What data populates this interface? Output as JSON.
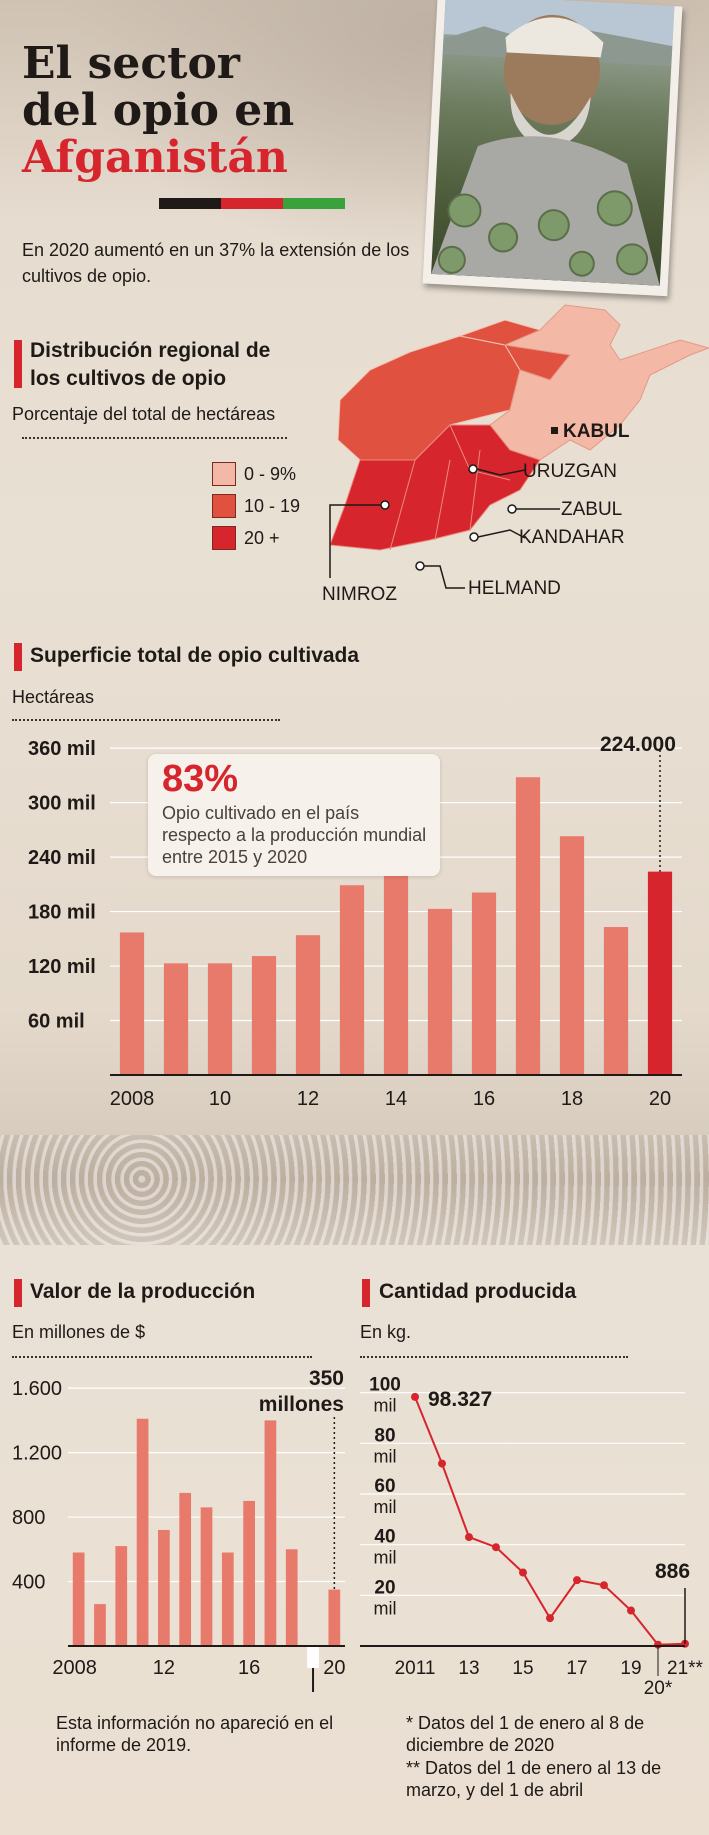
{
  "header": {
    "title_line1": "El sector",
    "title_line2": "del opio en",
    "title_line3": "Afganistán",
    "flag_colors": [
      "#1f1a17",
      "#d7252e",
      "#3aa23a"
    ],
    "intro": "En 2020 aumentó en un 37% la extensión de los cultivos de opio.",
    "photo_icon": "farmer-photo"
  },
  "map_section": {
    "title": "Distribución regional de los cultivos de opio",
    "subtitle": "Porcentaje del total de hectáreas",
    "legend": [
      {
        "label": "0 - 9%",
        "color": "#f3b8a6"
      },
      {
        "label": "10 - 19",
        "color": "#e0523f"
      },
      {
        "label": "20 +",
        "color": "#d7252e"
      }
    ],
    "labels": {
      "kabul": "KABUL",
      "uruzgan": "URUZGAN",
      "zabul": "ZABUL",
      "kandahar": "KANDAHAR",
      "helmand": "HELMAND",
      "nimroz": "NIMROZ"
    }
  },
  "area_section": {
    "title": "Superficie total de opio cultivada",
    "subtitle": "Hectáreas",
    "highlight_value": "224.000",
    "callout_big": "83%",
    "callout_text": "Opio cultivado en el país respecto a la producción mundial entre 2015 y 2020"
  },
  "value_section": {
    "title": "Valor de la producción",
    "subtitle": "En millones de $",
    "highlight_line1": "350",
    "highlight_line2": "millones",
    "note": "Esta información no apareció en el informe de 2019."
  },
  "qty_section": {
    "title": "Cantidad producida",
    "subtitle": "En kg.",
    "first_label": "98.327",
    "last_label": "886",
    "note1": "* Datos del 1 de enero al 8 de diciembre de 2020",
    "note2": "** Datos del 1 de enero al 13 de marzo, y del 1 de abril"
  },
  "chart_data": [
    {
      "type": "bar",
      "title": "Superficie total de opio cultivada",
      "ylabel": "Hectáreas",
      "categories": [
        "2008",
        "2009",
        "2010",
        "2011",
        "2012",
        "2013",
        "2014",
        "2015",
        "2016",
        "2017",
        "2018",
        "2019",
        "2020"
      ],
      "values": [
        157000,
        123000,
        123000,
        131000,
        154000,
        209000,
        224000,
        183000,
        201000,
        328000,
        263000,
        163000,
        224000
      ],
      "x_tick_labels": [
        "2008",
        "",
        "10",
        "",
        "12",
        "",
        "14",
        "",
        "16",
        "",
        "18",
        "",
        "20"
      ],
      "y_ticks": [
        60,
        120,
        180,
        240,
        300,
        360
      ],
      "y_tick_labels": [
        "60 mil",
        "120 mil",
        "180 mil",
        "240 mil",
        "300 mil",
        "360 mil"
      ],
      "ylim": [
        0,
        380000
      ],
      "colors": {
        "bar": "#e87a6c",
        "highlight": "#d7252e"
      },
      "grid": true
    },
    {
      "type": "bar",
      "title": "Valor de la producción",
      "ylabel": "En millones de $",
      "categories": [
        "2008",
        "2009",
        "2010",
        "2011",
        "2012",
        "2013",
        "2014",
        "2015",
        "2016",
        "2017",
        "2018",
        "2019",
        "2020"
      ],
      "values": [
        580,
        260,
        620,
        1410,
        720,
        950,
        860,
        580,
        900,
        1400,
        600,
        null,
        350
      ],
      "x_tick_labels": [
        "2008",
        "",
        "",
        "",
        "12",
        "",
        "",
        "",
        "16",
        "",
        "",
        "",
        "20"
      ],
      "y_ticks": [
        400,
        800,
        1200,
        1600
      ],
      "y_tick_labels": [
        "400",
        "800",
        "1.200",
        "1.600"
      ],
      "ylim": [
        0,
        1700
      ],
      "colors": {
        "bar": "#e87a6c"
      },
      "grid": true
    },
    {
      "type": "line",
      "title": "Cantidad producida",
      "ylabel": "En kg.",
      "x": [
        "2011",
        "2012",
        "2013",
        "2014",
        "2015",
        "2016",
        "2017",
        "2018",
        "2019",
        "2020",
        "2021"
      ],
      "values": [
        98327,
        72000,
        43000,
        39000,
        29000,
        11000,
        26000,
        24000,
        14000,
        500,
        886
      ],
      "x_tick_labels": [
        "2011",
        "",
        "13",
        "",
        "15",
        "",
        "17",
        "",
        "19",
        "20*",
        "21**"
      ],
      "y_ticks": [
        20,
        40,
        60,
        80,
        100
      ],
      "y_tick_labels": [
        "20 mil",
        "40 mil",
        "60 mil",
        "80 mil",
        "100 mil"
      ],
      "ylim": [
        0,
        105000
      ],
      "colors": {
        "line": "#d7252e"
      },
      "grid": true
    }
  ]
}
